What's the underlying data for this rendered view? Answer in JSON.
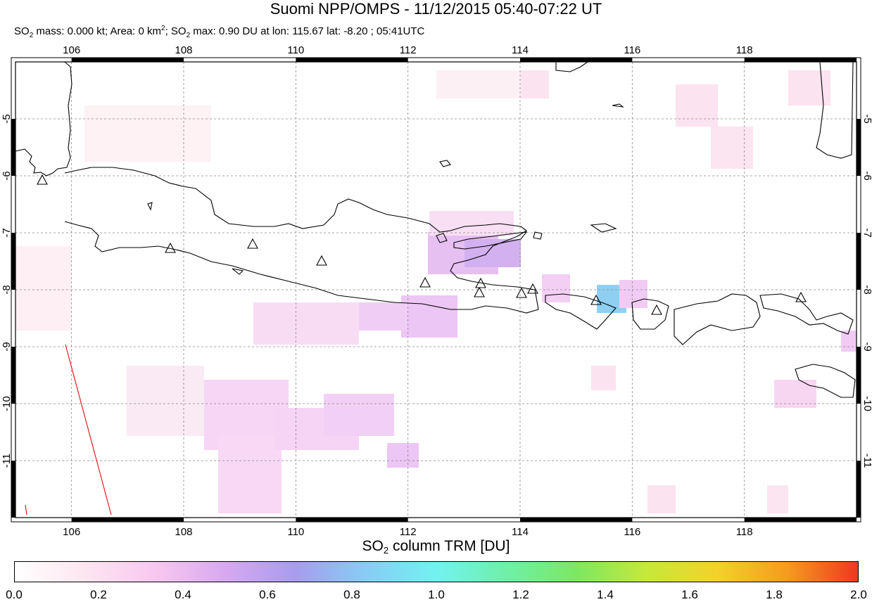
{
  "header": {
    "title": "Suomi NPP/OMPS - 11/12/2015 05:40-07:22 UT",
    "stats_prefix": "SO",
    "stats_mass": " mass: 0.000 kt; Area: 0 km",
    "stats_area_sup": "2",
    "stats_so2": "; SO",
    "stats_sub": "2",
    "stats_rest": " max: 0.90 DU at lon: 115.67 lat: -8.20 ; 05:41UTC"
  },
  "map": {
    "lon_range": [
      105.0,
      120.0
    ],
    "lat_range": [
      -12.0,
      -4.0
    ],
    "lon_ticks": [
      "106",
      "108",
      "110",
      "112",
      "114",
      "116",
      "118"
    ],
    "lat_ticks": [
      "-5",
      "-6",
      "-7",
      "-8",
      "-9",
      "-10",
      "-11"
    ],
    "grid": true,
    "volcano_marker": "triangle-icon"
  },
  "colorbar": {
    "title_prefix": "SO",
    "title_sub": "2",
    "title_rest": " column TRM [DU]",
    "range": [
      0.0,
      2.0
    ],
    "tick_labels": [
      "0.0",
      "0.2",
      "0.4",
      "0.6",
      "0.8",
      "1.0",
      "1.2",
      "1.4",
      "1.6",
      "1.8",
      "2.0"
    ],
    "colors": [
      "#ffffff",
      "#fde6f0",
      "#f8c7f0",
      "#d7a8f0",
      "#a79cf0",
      "#86cdf5",
      "#72f2f0",
      "#6ef0a8",
      "#7ce860",
      "#c7e83a",
      "#f4d12a",
      "#f59a1f",
      "#ee3820"
    ]
  }
}
